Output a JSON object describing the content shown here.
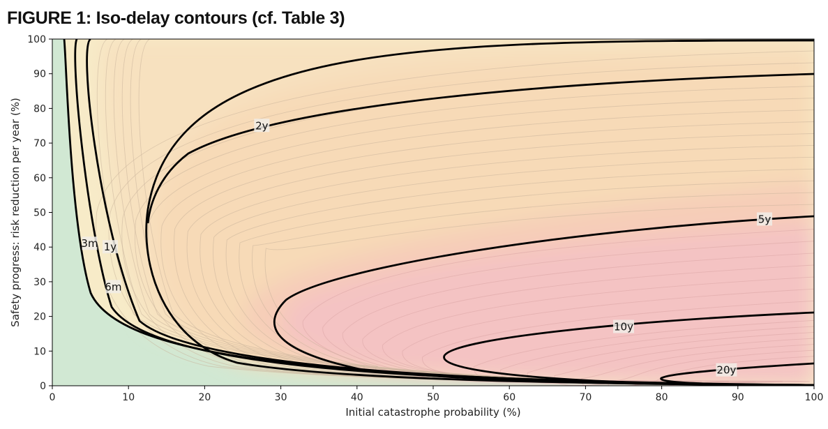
{
  "figure": {
    "title": "FIGURE 1: Iso-delay contours (cf. Table 3)"
  },
  "chart_data": {
    "type": "contour",
    "title": "FIGURE 1: Iso-delay contours (cf. Table 3)",
    "xlabel": "Initial catastrophe probability (%)",
    "ylabel": "Safety progress: risk reduction per year (%)",
    "xlim": [
      0,
      100
    ],
    "ylim": [
      0,
      100
    ],
    "x_ticks": [
      0,
      10,
      20,
      30,
      40,
      50,
      60,
      70,
      80,
      90,
      100
    ],
    "y_ticks": [
      0,
      10,
      20,
      30,
      40,
      50,
      60,
      70,
      80,
      90,
      100
    ],
    "grid": false,
    "colors": {
      "zero_region": "#d1e8d3",
      "short_delay": "#f7ebc8",
      "medium_delay": "#f7dab7",
      "long_delay": "#f4c3c3",
      "contour_line": "#000000"
    },
    "labeled_contours": [
      {
        "label": "3m",
        "label_at": [
          4.9,
          41
        ]
      },
      {
        "label": "6m",
        "label_at": [
          8.0,
          28.5
        ]
      },
      {
        "label": "1y",
        "label_at": [
          7.6,
          40
        ]
      },
      {
        "label": "2y",
        "label_at": [
          27.5,
          75
        ]
      },
      {
        "label": "5y",
        "label_at": [
          93.5,
          48
        ]
      },
      {
        "label": "10y",
        "label_at": [
          75,
          17
        ]
      },
      {
        "label": "20y",
        "label_at": [
          88.5,
          4.5
        ]
      }
    ]
  }
}
